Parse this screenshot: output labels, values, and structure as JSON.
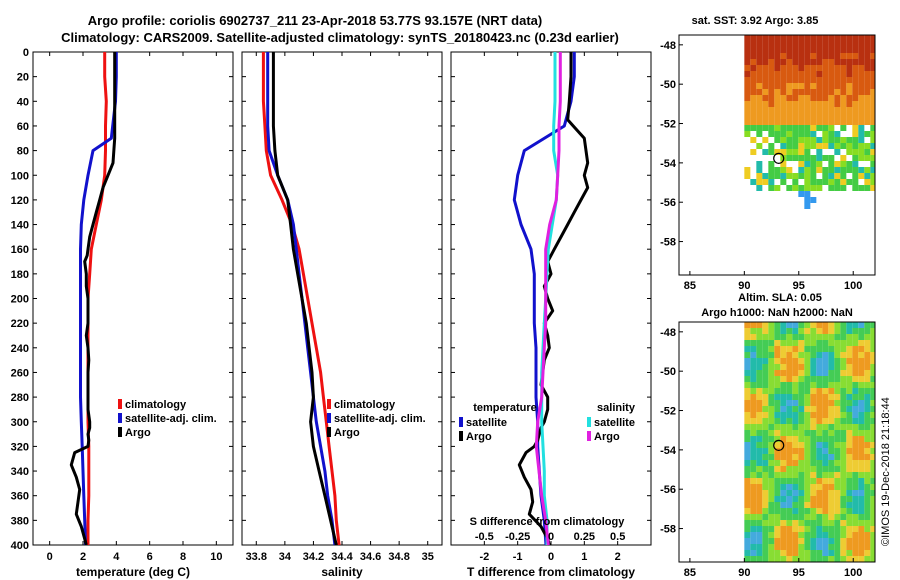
{
  "header": {
    "line1": "Argo profile: coriolis 6902737_211 23-Apr-2018 53.77S 93.157E (NRT data)",
    "line2": "Climatology: CARS2009. Satellite-adjusted climatology: synTS_20180423.nc (0.23d earlier)"
  },
  "watermark": "©IMOS 19-Dec-2018 21:18:44",
  "colors": {
    "climatology": "#ee1111",
    "satellite": "#1111cc",
    "argo": "#000000",
    "satellite_s": "#22e0e0",
    "argo_s": "#e020e0"
  },
  "chart_data": [
    {
      "type": "line",
      "id": "temperature",
      "xlabel": "temperature (deg C)",
      "xlim": [
        -1,
        11
      ],
      "xticks": [
        0,
        2,
        4,
        6,
        8,
        10
      ],
      "ylim": [
        400,
        0
      ],
      "yticks": [
        0,
        20,
        40,
        60,
        80,
        100,
        120,
        140,
        160,
        180,
        200,
        220,
        240,
        260,
        280,
        300,
        320,
        340,
        360,
        380,
        400
      ],
      "legend": [
        "climatology",
        "satellite-adj. clim.",
        "Argo"
      ],
      "series": [
        {
          "name": "climatology",
          "color_key": "climatology",
          "x": [
            3.3,
            3.3,
            3.4,
            3.35,
            3.35,
            3.3,
            3.1,
            2.8,
            2.5,
            2.4,
            2.3,
            2.3,
            2.3,
            2.3,
            2.3,
            2.3,
            2.35,
            2.35,
            2.35,
            2.3,
            2.3
          ],
          "y": [
            0,
            20,
            40,
            60,
            80,
            100,
            120,
            140,
            160,
            180,
            200,
            220,
            240,
            260,
            280,
            300,
            320,
            340,
            360,
            380,
            400
          ]
        },
        {
          "name": "satellite-adj. clim.",
          "color_key": "satellite",
          "x": [
            4.0,
            4.0,
            3.95,
            3.7,
            2.6,
            2.3,
            2.05,
            1.9,
            1.85,
            1.85,
            1.85,
            1.85,
            1.85,
            1.85,
            1.85,
            1.9,
            1.95,
            2.0,
            2.05,
            2.1,
            2.15
          ],
          "y": [
            0,
            20,
            40,
            70,
            80,
            100,
            120,
            140,
            160,
            180,
            200,
            220,
            240,
            260,
            280,
            300,
            320,
            340,
            360,
            380,
            400
          ]
        },
        {
          "name": "Argo",
          "color_key": "argo",
          "x": [
            3.9,
            3.9,
            3.9,
            3.9,
            3.9,
            3.8,
            3.5,
            3.2,
            3.0,
            2.8,
            2.6,
            2.4,
            2.3,
            2.25,
            2.1,
            2.2,
            2.2,
            2.3,
            2.3,
            2.3,
            2.2,
            2.3,
            2.35,
            2.3,
            2.3,
            2.3,
            2.3,
            2.4,
            2.4,
            2.3,
            2.35,
            2.3,
            1.5,
            1.3,
            1.6,
            1.8,
            1.7,
            1.6,
            1.9,
            2.1,
            2.2
          ],
          "y": [
            0,
            20,
            40,
            55,
            70,
            90,
            100,
            110,
            120,
            130,
            140,
            150,
            160,
            165,
            170,
            180,
            190,
            200,
            210,
            220,
            230,
            240,
            250,
            260,
            270,
            280,
            290,
            300,
            305,
            310,
            315,
            320,
            325,
            335,
            345,
            355,
            365,
            375,
            385,
            395,
            400
          ]
        }
      ]
    },
    {
      "type": "line",
      "id": "salinity",
      "xlabel": "salinity",
      "xlim": [
        33.7,
        35.1
      ],
      "xticks": [
        33.8,
        34,
        34.2,
        34.4,
        34.6,
        34.8,
        35
      ],
      "xticklabels": [
        "33.8",
        "34",
        "34.2",
        "34.4",
        "34.6",
        "34.8",
        "35"
      ],
      "ylim": [
        400,
        0
      ],
      "legend": [
        "climatology",
        "satellite-adj. clim.",
        "Argo"
      ],
      "series": [
        {
          "name": "climatology",
          "color_key": "climatology",
          "x": [
            33.85,
            33.85,
            33.85,
            33.86,
            33.87,
            33.9,
            33.98,
            34.05,
            34.1,
            34.13,
            34.16,
            34.19,
            34.22,
            34.25,
            34.27,
            34.29,
            34.31,
            34.33,
            34.35,
            34.36,
            34.38
          ],
          "y": [
            0,
            20,
            40,
            60,
            80,
            100,
            120,
            140,
            160,
            180,
            200,
            220,
            240,
            260,
            280,
            300,
            320,
            340,
            360,
            380,
            400
          ]
        },
        {
          "name": "satellite-adj. clim.",
          "color_key": "satellite",
          "x": [
            33.88,
            33.88,
            33.88,
            33.88,
            33.89,
            33.95,
            34.02,
            34.06,
            34.08,
            34.1,
            34.12,
            34.14,
            34.16,
            34.18,
            34.2,
            34.22,
            34.25,
            34.28,
            34.3,
            34.33,
            34.35
          ],
          "y": [
            0,
            20,
            40,
            60,
            80,
            100,
            120,
            140,
            160,
            180,
            200,
            220,
            240,
            260,
            280,
            300,
            320,
            340,
            360,
            380,
            400
          ]
        },
        {
          "name": "Argo",
          "color_key": "argo",
          "x": [
            33.92,
            33.92,
            33.92,
            33.92,
            33.93,
            33.95,
            34.02,
            34.04,
            34.06,
            34.09,
            34.12,
            34.15,
            34.17,
            34.19,
            34.2,
            34.18,
            34.2,
            34.24,
            34.28,
            34.32,
            34.36
          ],
          "y": [
            0,
            20,
            40,
            60,
            80,
            100,
            120,
            140,
            160,
            180,
            200,
            220,
            240,
            260,
            280,
            300,
            320,
            340,
            360,
            380,
            400
          ]
        }
      ]
    },
    {
      "type": "line",
      "id": "difference",
      "xlabel": "T difference from climatology",
      "x2label": "S difference from climatology",
      "xlim": [
        -3,
        3
      ],
      "xticks": [
        -2,
        -1,
        0,
        1,
        2
      ],
      "xticklabels": [
        "-2",
        "-1",
        "0",
        "1",
        "2"
      ],
      "s_xticks": [
        -0.5,
        -0.25,
        0,
        0.25,
        0.5
      ],
      "s_xticklabels": [
        "-0.5",
        "-0.25",
        "0",
        "0.25",
        "0.5"
      ],
      "ylim": [
        400,
        0
      ],
      "legend_titles": [
        "temperature",
        "salinity"
      ],
      "legend": [
        "satellite",
        "Argo",
        "satellite",
        "Argo"
      ],
      "series": [
        {
          "name": "T satellite",
          "color_key": "satellite",
          "x": [
            0.7,
            0.7,
            0.6,
            0.4,
            -0.8,
            -1.0,
            -1.1,
            -0.9,
            -0.6,
            -0.5,
            -0.5,
            -0.5,
            -0.45,
            -0.45,
            -0.45,
            -0.4,
            -0.4,
            -0.35,
            -0.3,
            -0.2,
            -0.15
          ],
          "y": [
            0,
            20,
            40,
            60,
            80,
            100,
            120,
            140,
            160,
            180,
            200,
            220,
            240,
            260,
            280,
            300,
            320,
            340,
            360,
            380,
            400
          ]
        },
        {
          "name": "T Argo",
          "color_key": "argo",
          "x": [
            0.6,
            0.6,
            0.55,
            0.5,
            1.0,
            1.1,
            1.0,
            1.1,
            0.9,
            0.7,
            0.5,
            0.3,
            0.1,
            0.0,
            -0.1,
            0.0,
            -0.2,
            -0.1,
            0.05,
            -0.2,
            -0.1,
            -0.05,
            -0.2,
            -0.25,
            -0.3,
            -0.1,
            -0.1,
            -0.2,
            -0.3,
            -0.35,
            -0.4,
            -0.5,
            -0.75,
            -0.95,
            -0.8,
            -0.6,
            -0.55,
            -0.65,
            -0.3,
            -0.1,
            -0.05
          ],
          "y": [
            0,
            20,
            40,
            55,
            70,
            90,
            100,
            110,
            120,
            130,
            140,
            150,
            160,
            165,
            170,
            180,
            190,
            200,
            210,
            220,
            230,
            240,
            250,
            260,
            270,
            280,
            290,
            300,
            305,
            310,
            315,
            320,
            325,
            335,
            345,
            355,
            365,
            375,
            385,
            395,
            400
          ]
        },
        {
          "name": "S satellite",
          "color_key": "satellite_s",
          "units": "salinity",
          "x": [
            0.03,
            0.03,
            0.03,
            0.02,
            0.02,
            0.05,
            0.04,
            0.01,
            -0.02,
            -0.03,
            -0.04,
            -0.05,
            -0.06,
            -0.07,
            -0.07,
            -0.07,
            -0.06,
            -0.05,
            -0.05,
            -0.03,
            -0.03
          ],
          "y": [
            0,
            20,
            40,
            60,
            80,
            100,
            120,
            140,
            160,
            180,
            200,
            220,
            240,
            260,
            280,
            300,
            320,
            340,
            360,
            380,
            400
          ]
        },
        {
          "name": "S Argo",
          "color_key": "argo_s",
          "units": "salinity",
          "x": [
            0.07,
            0.07,
            0.07,
            0.06,
            0.06,
            0.05,
            0.04,
            -0.01,
            -0.04,
            -0.04,
            -0.04,
            -0.04,
            -0.05,
            -0.06,
            -0.07,
            -0.1,
            -0.11,
            -0.09,
            -0.07,
            -0.04,
            -0.02
          ],
          "y": [
            0,
            20,
            40,
            60,
            80,
            100,
            120,
            140,
            160,
            180,
            200,
            220,
            240,
            260,
            280,
            300,
            320,
            340,
            360,
            380,
            400
          ]
        }
      ]
    },
    {
      "type": "heatmap",
      "id": "sst_map",
      "title": "sat. SST: 3.92 Argo: 3.85",
      "xlim": [
        84,
        102
      ],
      "ylim": [
        -59.7,
        -47.5
      ],
      "xticks": [
        85,
        90,
        95,
        100
      ],
      "yticks": [
        -48,
        -50,
        -52,
        -54,
        -56,
        -58
      ],
      "marker": {
        "lon": 93.157,
        "lat": -53.77
      }
    },
    {
      "type": "heatmap",
      "id": "sla_map",
      "title": "Altim. SLA: 0.05",
      "subtitle": "Argo h1000: NaN h2000: NaN",
      "xlim": [
        84,
        102
      ],
      "ylim": [
        -59.7,
        -47.5
      ],
      "xticks": [
        85,
        90,
        95,
        100
      ],
      "yticks": [
        -48,
        -50,
        -52,
        -54,
        -56,
        -58
      ],
      "marker": {
        "lon": 93.157,
        "lat": -53.77
      }
    }
  ]
}
